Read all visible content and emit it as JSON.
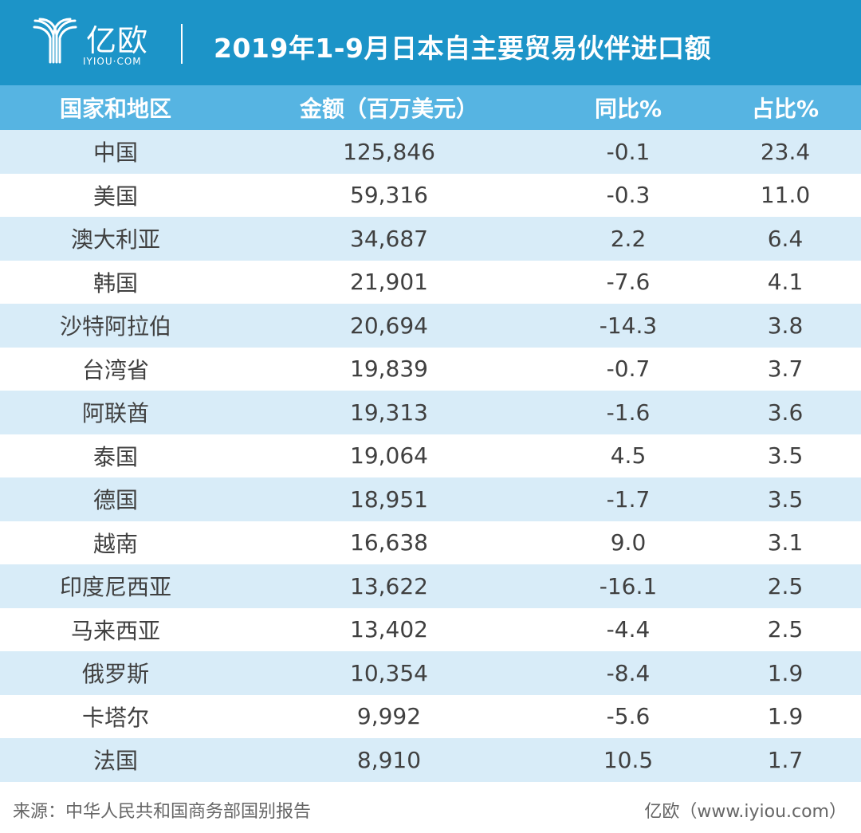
{
  "header": {
    "logo_cn": "亿欧",
    "logo_en": "IYIOU·COM",
    "title": "2019年1-9月日本自主要贸易伙伴进口额",
    "color": "#1c94c8"
  },
  "table": {
    "columns": [
      "国家和地区",
      "金额（百万美元）",
      "同比%",
      "占比%"
    ],
    "rows": [
      [
        "中国",
        "125,846",
        "-0.1",
        "23.4"
      ],
      [
        "美国",
        "59,316",
        "-0.3",
        "11.0"
      ],
      [
        "澳大利亚",
        "34,687",
        "2.2",
        "6.4"
      ],
      [
        "韩国",
        "21,901",
        "-7.6",
        "4.1"
      ],
      [
        "沙特阿拉伯",
        "20,694",
        "-14.3",
        "3.8"
      ],
      [
        "台湾省",
        "19,839",
        "-0.7",
        "3.7"
      ],
      [
        "阿联酋",
        "19,313",
        "-1.6",
        "3.6"
      ],
      [
        "泰国",
        "19,064",
        "4.5",
        "3.5"
      ],
      [
        "德国",
        "18,951",
        "-1.7",
        "3.5"
      ],
      [
        "越南",
        "16,638",
        "9.0",
        "3.1"
      ],
      [
        "印度尼西亚",
        "13,622",
        "-16.1",
        "2.5"
      ],
      [
        "马来西亚",
        "13,402",
        "-4.4",
        "2.5"
      ],
      [
        "俄罗斯",
        "10,354",
        "-8.4",
        "1.9"
      ],
      [
        "卡塔尔",
        "9,992",
        "-5.6",
        "1.9"
      ],
      [
        "法国",
        "8,910",
        "10.5",
        "1.7"
      ]
    ]
  },
  "chart_data": {
    "type": "table",
    "title": "2019年1-9月日本自主要贸易伙伴进口额",
    "columns": [
      "国家和地区",
      "金额（百万美元）",
      "同比%",
      "占比%"
    ],
    "categories": [
      "中国",
      "美国",
      "澳大利亚",
      "韩国",
      "沙特阿拉伯",
      "台湾省",
      "阿联酋",
      "泰国",
      "德国",
      "越南",
      "印度尼西亚",
      "马来西亚",
      "俄罗斯",
      "卡塔尔",
      "法国"
    ],
    "series": [
      {
        "name": "金额（百万美元）",
        "values": [
          125846,
          59316,
          34687,
          21901,
          20694,
          19839,
          19313,
          19064,
          18951,
          16638,
          13622,
          13402,
          10354,
          9992,
          8910
        ]
      },
      {
        "name": "同比%",
        "values": [
          -0.1,
          -0.3,
          2.2,
          -7.6,
          -14.3,
          -0.7,
          -1.6,
          4.5,
          -1.7,
          9.0,
          -16.1,
          -4.4,
          -8.4,
          -5.6,
          10.5
        ]
      },
      {
        "name": "占比%",
        "values": [
          23.4,
          11.0,
          6.4,
          4.1,
          3.8,
          3.7,
          3.6,
          3.5,
          3.5,
          3.1,
          2.5,
          2.5,
          1.9,
          1.9,
          1.7
        ]
      }
    ]
  },
  "footer": {
    "source": "来源：中华人民共和国商务部国别报告",
    "credit": "亿欧（www.iyiou.com）"
  }
}
